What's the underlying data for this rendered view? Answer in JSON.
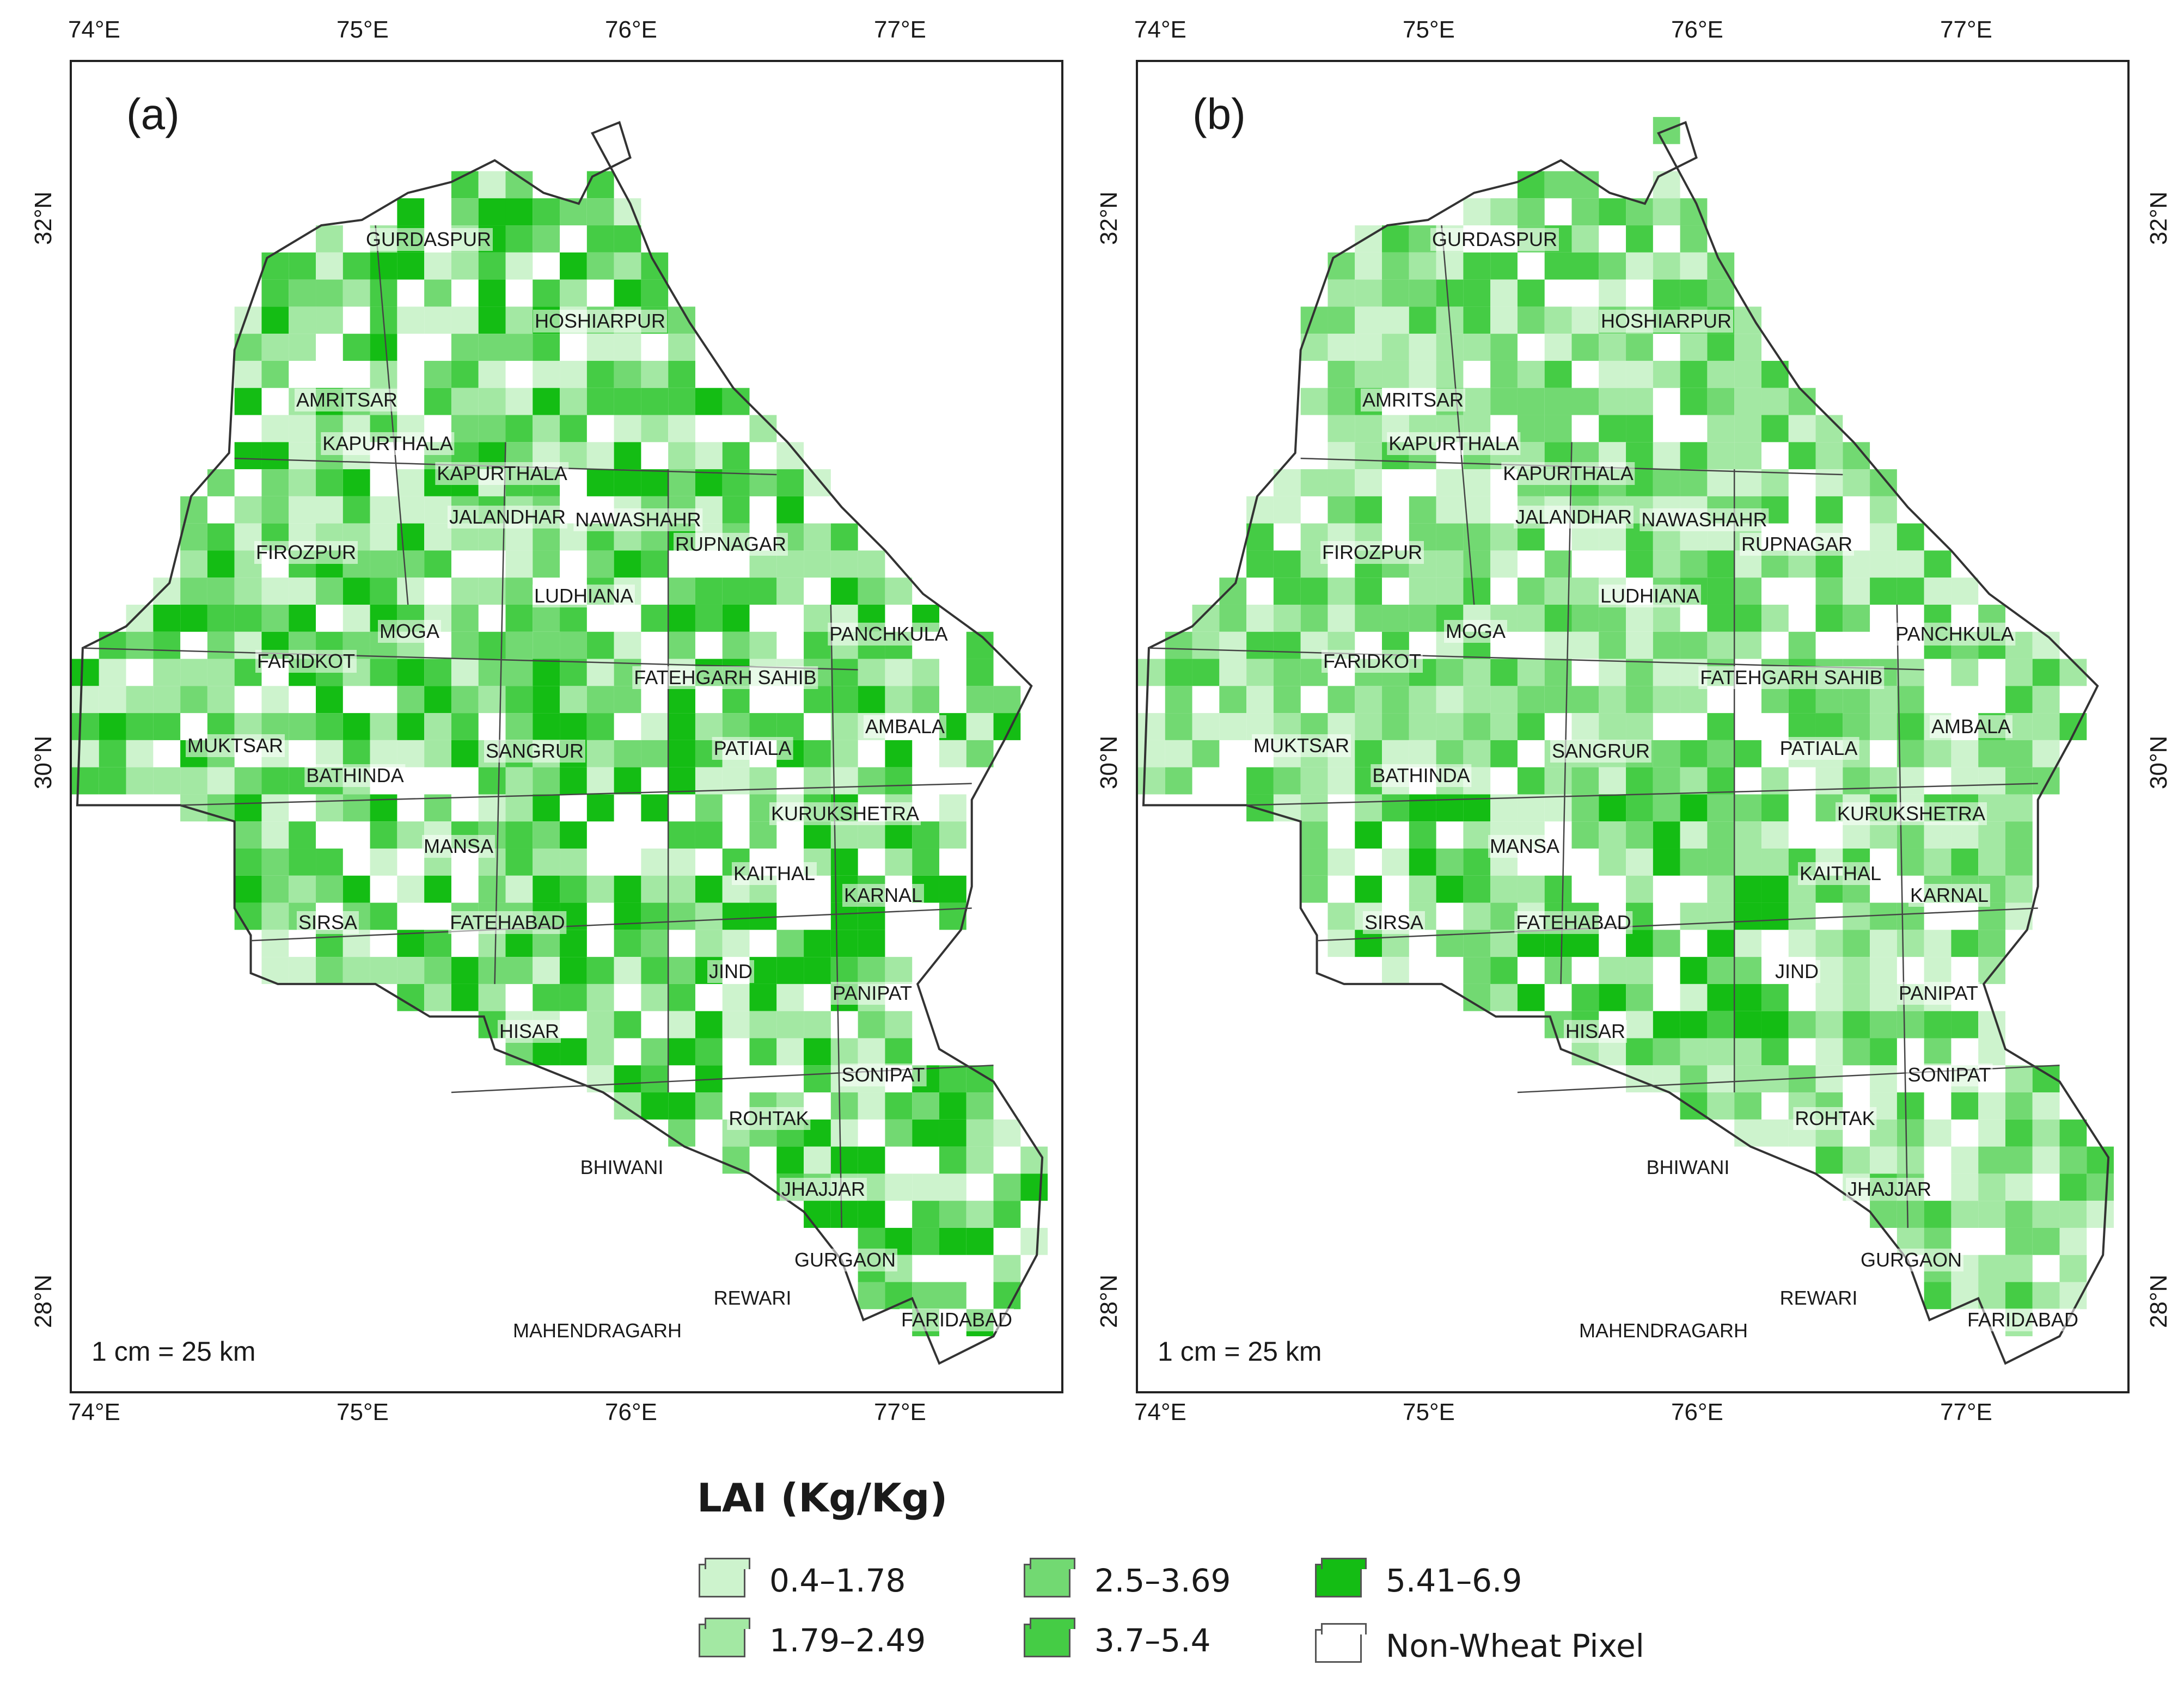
{
  "panels": [
    {
      "id": "a",
      "label": "(a)",
      "scale": "1 cm = 25 km"
    },
    {
      "id": "b",
      "label": "(b)",
      "scale": "1 cm = 25 km"
    }
  ],
  "axes": {
    "lon_ticks": [
      "74°E",
      "75°E",
      "76°E",
      "77°E"
    ],
    "lat_ticks": [
      "32°N",
      "30°N",
      "28°N"
    ]
  },
  "districts": [
    "GURDASPUR",
    "HOSHIARPUR",
    "AMRITSAR",
    "KAPURTHALA",
    "KAPURTHALA",
    "JALANDHAR",
    "NAWASHAHR",
    "FIROZPUR",
    "RUPNAGAR",
    "LUDHIANA",
    "MOGA",
    "PANCHKULA",
    "FARIDKOT",
    "FATEHGARH SAHIB",
    "AMBALA",
    "MUKTSAR",
    "SANGRUR",
    "PATIALA",
    "BATHINDA",
    "KURUKSHETRA",
    "MANSA",
    "KAITHAL",
    "KARNAL",
    "SIRSA",
    "FATEHABAD",
    "JIND",
    "PANIPAT",
    "HISAR",
    "SONIPAT",
    "ROHTAK",
    "BHIWANI",
    "JHAJJAR",
    "GURGAON",
    "REWARI",
    "FARIDABAD",
    "MAHENDRAGARH"
  ],
  "legend": {
    "title": "LAI (Kg/Kg)",
    "classes": [
      {
        "label": "0.4–1.78",
        "color": "#cdf3cd"
      },
      {
        "label": "1.79–2.49",
        "color": "#a3e8a3"
      },
      {
        "label": "2.5–3.69",
        "color": "#72d972"
      },
      {
        "label": "3.7–5.4",
        "color": "#45cc45"
      },
      {
        "label": "5.41–6.9",
        "color": "#14bd14"
      },
      {
        "label": "Non-Wheat Pixel",
        "color": "#ffffff"
      }
    ]
  }
}
